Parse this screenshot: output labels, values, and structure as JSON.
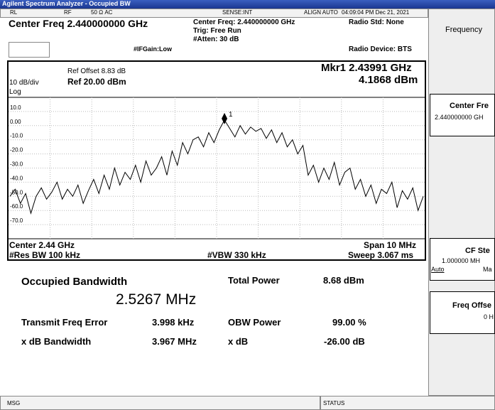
{
  "title_bar": "Agilent Spectrum Analyzer - Occupied BW",
  "status_row": [
    "RL",
    "RF",
    "50 Ω  AC",
    "SENSE:INT",
    "ALIGN AUTO",
    "04:09:04 PM Dec 21, 2021"
  ],
  "header": {
    "center_freq": "Center Freq 2.440000000 GHz",
    "center_freq_small": "Center Freq: 2.440000000 GHz",
    "trig": "Trig: Free Run",
    "atten": "#Atten: 30 dB",
    "ifgain": "#IFGain:Low",
    "radio_std": "Radio Std: None",
    "radio_device": "Radio Device: BTS"
  },
  "graph": {
    "ref_offset": "Ref Offset 8.83 dB",
    "scale": "10 dB/div",
    "ref_level": "Ref 20.00 dBm",
    "scale_type": "Log",
    "marker_freq": "Mkr1  2.43991 GHz",
    "marker_level": "4.1868 dBm",
    "marker_label": "1",
    "ylim": [
      -80,
      20
    ],
    "yticks": [
      {
        "value": 10,
        "label": "10.0"
      },
      {
        "value": 0,
        "label": "0.00"
      },
      {
        "value": -10,
        "label": "-10.0"
      },
      {
        "value": -20,
        "label": "-20.0"
      },
      {
        "value": -30,
        "label": "-30.0"
      },
      {
        "value": -40,
        "label": "-40.0"
      },
      {
        "value": -50,
        "label": "-50.0"
      },
      {
        "value": -60,
        "label": "-60.0"
      },
      {
        "value": -70,
        "label": "-70.0"
      }
    ],
    "trace": [
      -50,
      -45,
      -55,
      -48,
      -62,
      -50,
      -44,
      -52,
      -47,
      -40,
      -52,
      -45,
      -50,
      -42,
      -55,
      -46,
      -38,
      -48,
      -35,
      -45,
      -30,
      -42,
      -33,
      -38,
      -28,
      -40,
      -25,
      -35,
      -30,
      -22,
      -35,
      -18,
      -28,
      -12,
      -20,
      -10,
      -8,
      -15,
      -5,
      -12,
      -3,
      4,
      -2,
      -8,
      0,
      -6,
      -1,
      -4,
      -2,
      -9,
      -3,
      -12,
      -5,
      -15,
      -10,
      -20,
      -14,
      -35,
      -28,
      -40,
      -30,
      -38,
      -26,
      -42,
      -33,
      -30,
      -45,
      -38,
      -50,
      -42,
      -55,
      -45,
      -48,
      -40,
      -58,
      -46,
      -52,
      -44,
      -60,
      -50
    ],
    "center": "Center  2.44 GHz",
    "res_bw": "#Res BW  100 kHz",
    "vbw": "#VBW  330 kHz",
    "span": "Span 10 MHz",
    "sweep": "Sweep  3.067 ms"
  },
  "results": {
    "obw_label": "Occupied Bandwidth",
    "obw_value": "2.5267 MHz",
    "total_power_label": "Total Power",
    "total_power_value": "8.68 dBm",
    "tfe_label": "Transmit Freq Error",
    "tfe_value": "3.998 kHz",
    "obw_power_label": "OBW Power",
    "obw_power_value": "99.00 %",
    "xdb_bw_label": "x dB Bandwidth",
    "xdb_bw_value": "3.967 MHz",
    "xdb_label": "x dB",
    "xdb_value": "-26.00 dB"
  },
  "softkeys": {
    "menu": "Frequency",
    "center_freq": "Center Fre",
    "center_freq_value": "2.440000000 GH",
    "cf_step": "CF Ste",
    "cf_step_value": "1.000000 MH",
    "auto": "Auto",
    "man": "Ma",
    "freq_offset": "Freq Offse",
    "freq_offset_value": "0 H"
  },
  "status_bar": {
    "msg": "MSG",
    "status": "STATUS"
  }
}
